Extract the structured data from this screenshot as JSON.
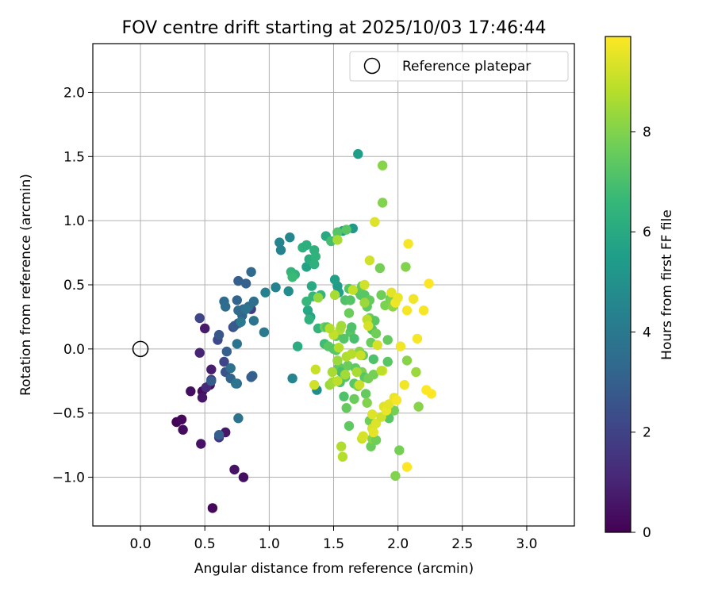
{
  "chart_data": {
    "type": "scatter",
    "title": "FOV centre drift starting at 2025/10/03 17:46:44",
    "xlabel": "Angular distance from reference (arcmin)",
    "ylabel": "Rotation from reference (arcmin)",
    "xlim": [
      -0.37,
      3.37
    ],
    "ylim": [
      -1.38,
      2.38
    ],
    "xticks": [
      0.0,
      0.5,
      1.0,
      1.5,
      2.0,
      2.5,
      3.0
    ],
    "xtick_labels": [
      "0.0",
      "0.5",
      "1.0",
      "1.5",
      "2.0",
      "2.5",
      "3.0"
    ],
    "yticks": [
      -1.0,
      -0.5,
      0.0,
      0.5,
      1.0,
      1.5,
      2.0
    ],
    "ytick_labels": [
      "−1.0",
      "−0.5",
      "0.0",
      "0.5",
      "1.0",
      "1.5",
      "2.0"
    ],
    "grid": true,
    "legend": {
      "position": "top-right",
      "entries": [
        "Reference platepar"
      ]
    },
    "reference_point": {
      "x": 0.0,
      "y": 0.0
    },
    "colorbar": {
      "label": "Hours from first FF file",
      "range": [
        0,
        9.9
      ],
      "ticks": [
        0,
        2,
        4,
        6,
        8
      ],
      "tick_labels": [
        "0",
        "2",
        "4",
        "6",
        "8"
      ],
      "colormap": [
        "#440154",
        "#482878",
        "#3e4989",
        "#31688e",
        "#26828e",
        "#1f9e89",
        "#35b779",
        "#6ece58",
        "#b5de2b",
        "#fde725"
      ]
    },
    "points": [
      [
        0.28,
        -0.57,
        0.1
      ],
      [
        0.32,
        -0.55,
        0.2
      ],
      [
        0.33,
        -0.63,
        0.3
      ],
      [
        0.39,
        -0.33,
        0.4
      ],
      [
        0.47,
        -0.74,
        0.5
      ],
      [
        0.48,
        -0.33,
        0.3
      ],
      [
        0.48,
        -0.38,
        0.6
      ],
      [
        0.5,
        0.16,
        0.7
      ],
      [
        0.54,
        -0.28,
        0.5
      ],
      [
        0.55,
        -0.16,
        0.8
      ],
      [
        0.56,
        -1.24,
        0.2
      ],
      [
        0.66,
        -0.65,
        0.6
      ],
      [
        0.73,
        -0.94,
        0.5
      ],
      [
        0.8,
        -1.0,
        0.4
      ],
      [
        0.46,
        -0.03,
        1.0
      ],
      [
        0.51,
        -0.3,
        1.2
      ],
      [
        0.55,
        -0.24,
        1.5
      ],
      [
        0.61,
        -0.69,
        1.6
      ],
      [
        0.46,
        0.24,
        2.1
      ],
      [
        0.6,
        0.07,
        2.2
      ],
      [
        0.65,
        -0.1,
        2.1
      ],
      [
        0.72,
        0.17,
        2.2
      ],
      [
        0.86,
        0.31,
        1.8
      ],
      [
        0.66,
        -0.18,
        2.6
      ],
      [
        0.61,
        -0.67,
        3.0
      ],
      [
        0.55,
        -0.25,
        2.9
      ],
      [
        0.61,
        0.11,
        2.7
      ],
      [
        0.67,
        -0.02,
        3.0
      ],
      [
        0.7,
        -0.23,
        3.2
      ],
      [
        0.75,
        -0.27,
        3.2
      ],
      [
        0.73,
        0.18,
        2.9
      ],
      [
        0.79,
        0.26,
        3.2
      ],
      [
        0.76,
        0.2,
        2.8
      ],
      [
        0.75,
        0.38,
        3.2
      ],
      [
        0.76,
        0.53,
        3.0
      ],
      [
        0.82,
        0.51,
        3.1
      ],
      [
        0.86,
        0.6,
        3.4
      ],
      [
        0.65,
        0.37,
        3.4
      ],
      [
        0.66,
        0.33,
        3.5
      ],
      [
        0.76,
        0.3,
        3.4
      ],
      [
        0.8,
        0.31,
        3.3
      ],
      [
        0.84,
        0.33,
        3.6
      ],
      [
        0.87,
        -0.21,
        3.3
      ],
      [
        0.86,
        -0.22,
        3.0
      ],
      [
        0.88,
        0.22,
        3.8
      ],
      [
        0.88,
        0.37,
        3.6
      ],
      [
        0.7,
        -0.15,
        3.7
      ],
      [
        0.74,
        -0.27,
        3.9
      ],
      [
        0.75,
        0.04,
        3.8
      ],
      [
        0.76,
        -0.54,
        3.8
      ],
      [
        0.78,
        0.21,
        4.0
      ],
      [
        0.82,
        0.31,
        3.8
      ],
      [
        0.96,
        0.13,
        4.0
      ],
      [
        0.97,
        0.44,
        4.3
      ],
      [
        1.05,
        0.48,
        4.4
      ],
      [
        1.08,
        0.83,
        4.5
      ],
      [
        1.09,
        0.77,
        4.4
      ],
      [
        1.16,
        0.87,
        4.6
      ],
      [
        1.15,
        0.45,
        4.8
      ],
      [
        1.18,
        -0.23,
        4.5
      ],
      [
        1.37,
        -0.32,
        4.8
      ],
      [
        1.65,
        0.94,
        5.3
      ],
      [
        1.69,
        1.52,
        5.5
      ],
      [
        1.57,
        0.92,
        5.6
      ],
      [
        1.54,
        0.44,
        5.6
      ],
      [
        1.53,
        0.49,
        5.4
      ],
      [
        1.51,
        0.54,
        5.6
      ],
      [
        1.29,
        0.64,
        5.7
      ],
      [
        1.3,
        0.3,
        5.9
      ],
      [
        1.32,
        0.25,
        5.8
      ],
      [
        1.33,
        0.49,
        6.0
      ],
      [
        1.44,
        0.88,
        6.0
      ],
      [
        1.22,
        0.02,
        6.1
      ],
      [
        1.26,
        0.79,
        6.3
      ],
      [
        1.29,
        0.81,
        6.2
      ],
      [
        1.31,
        0.7,
        6.1
      ],
      [
        1.35,
        0.77,
        6.3
      ],
      [
        1.2,
        0.58,
        6.4
      ],
      [
        1.17,
        0.6,
        6.5
      ],
      [
        1.18,
        0.56,
        6.7
      ],
      [
        1.35,
        0.66,
        6.3
      ],
      [
        1.36,
        0.72,
        6.4
      ],
      [
        1.29,
        0.37,
        6.6
      ],
      [
        1.31,
        0.23,
        6.4
      ],
      [
        1.34,
        0.41,
        6.6
      ],
      [
        1.38,
        0.16,
        6.5
      ],
      [
        1.4,
        0.42,
        6.5
      ],
      [
        1.43,
        0.04,
        6.8
      ],
      [
        1.48,
        0.84,
        6.9
      ],
      [
        1.53,
        0.91,
        7.2
      ],
      [
        1.59,
        0.38,
        7.1
      ],
      [
        1.6,
        0.93,
        7.3
      ],
      [
        1.62,
        0.47,
        7.2
      ],
      [
        1.63,
        0.38,
        7.2
      ],
      [
        1.63,
        0.13,
        7.3
      ],
      [
        1.64,
        0.17,
        7.1
      ],
      [
        1.66,
        0.08,
        7.0
      ],
      [
        1.69,
        0.45,
        7.4
      ],
      [
        1.71,
        0.42,
        7.3
      ],
      [
        1.72,
        0.49,
        7.5
      ],
      [
        1.74,
        0.42,
        7.3
      ],
      [
        1.76,
        0.33,
        7.4
      ],
      [
        1.78,
        0.38,
        7.5
      ],
      [
        1.78,
        0.24,
        7.6
      ],
      [
        1.79,
        0.05,
        7.6
      ],
      [
        1.8,
        0.15,
        7.2
      ],
      [
        1.81,
        -0.08,
        7.1
      ],
      [
        1.82,
        0.22,
        7.3
      ],
      [
        1.83,
        0.12,
        7.7
      ],
      [
        1.87,
        0.42,
        7.7
      ],
      [
        1.86,
        0.63,
        7.8
      ],
      [
        1.88,
        1.43,
        8.1
      ],
      [
        1.88,
        1.14,
        8.0
      ],
      [
        1.9,
        0.34,
        7.9
      ],
      [
        1.92,
        0.07,
        7.5
      ],
      [
        1.94,
        0.39,
        7.7
      ],
      [
        1.95,
        0.38,
        7.9
      ],
      [
        1.96,
        0.33,
        8.2
      ],
      [
        1.92,
        -0.1,
        7.3
      ],
      [
        1.93,
        -0.54,
        7.3
      ],
      [
        1.97,
        -0.48,
        7.8
      ],
      [
        1.98,
        -0.99,
        8.0
      ],
      [
        2.01,
        -0.79,
        7.8
      ],
      [
        2.06,
        0.64,
        8.0
      ],
      [
        2.07,
        -0.09,
        8.1
      ],
      [
        2.14,
        -0.18,
        8.4
      ],
      [
        2.16,
        -0.45,
        8.1
      ],
      [
        1.43,
        0.17,
        7.7
      ],
      [
        1.45,
        0.17,
        7.2
      ],
      [
        1.46,
        0.02,
        7.3
      ],
      [
        1.5,
        0.0,
        7.2
      ],
      [
        1.52,
        0.1,
        7.4
      ],
      [
        1.52,
        -0.01,
        7.3
      ],
      [
        1.54,
        -0.14,
        7.4
      ],
      [
        1.55,
        -0.26,
        7.1
      ],
      [
        1.56,
        -0.18,
        7.0
      ],
      [
        1.58,
        -0.37,
        7.1
      ],
      [
        1.58,
        0.08,
        7.2
      ],
      [
        1.59,
        -0.22,
        7.2
      ],
      [
        1.6,
        -0.46,
        7.5
      ],
      [
        1.61,
        -0.13,
        7.6
      ],
      [
        1.62,
        -0.6,
        7.4
      ],
      [
        1.62,
        0.28,
        7.6
      ],
      [
        1.66,
        -0.27,
        7.3
      ],
      [
        1.66,
        -0.39,
        7.6
      ],
      [
        1.67,
        -0.15,
        7.4
      ],
      [
        1.69,
        -0.29,
        7.8
      ],
      [
        1.7,
        -0.02,
        8.1
      ],
      [
        1.72,
        -0.18,
        7.9
      ],
      [
        1.73,
        -0.05,
        7.5
      ],
      [
        1.74,
        -0.22,
        7.3
      ],
      [
        1.75,
        -0.35,
        7.5
      ],
      [
        1.76,
        -0.42,
        8.0
      ],
      [
        1.77,
        -0.23,
        7.8
      ],
      [
        1.78,
        -0.56,
        7.7
      ],
      [
        1.79,
        -0.76,
        7.6
      ],
      [
        1.8,
        -0.7,
        8.1
      ],
      [
        1.81,
        -0.2,
        7.8
      ],
      [
        1.83,
        -0.71,
        7.7
      ],
      [
        1.74,
        0.36,
        8.4
      ],
      [
        1.38,
        0.4,
        8.3
      ],
      [
        1.47,
        -0.28,
        8.4
      ],
      [
        1.49,
        -0.18,
        8.6
      ],
      [
        1.49,
        -0.26,
        8.5
      ],
      [
        1.51,
        0.42,
        8.6
      ],
      [
        1.53,
        0.85,
        8.6
      ],
      [
        1.53,
        -0.09,
        8.4
      ],
      [
        1.53,
        -0.25,
        8.9
      ],
      [
        1.54,
        0.01,
        8.8
      ],
      [
        1.55,
        0.15,
        8.7
      ],
      [
        1.56,
        0.18,
        8.5
      ],
      [
        1.56,
        -0.76,
        8.7
      ],
      [
        1.57,
        -0.84,
        8.8
      ],
      [
        1.59,
        -0.2,
        8.5
      ],
      [
        1.6,
        -0.06,
        8.7
      ],
      [
        1.64,
        -0.04,
        8.8
      ],
      [
        1.65,
        0.46,
        9.0
      ],
      [
        1.68,
        -0.18,
        8.6
      ],
      [
        1.7,
        -0.28,
        9.1
      ],
      [
        1.71,
        -0.05,
        9.1
      ],
      [
        1.72,
        -0.7,
        9.1
      ],
      [
        1.73,
        -0.68,
        9.3
      ],
      [
        1.74,
        0.5,
        9.2
      ],
      [
        1.76,
        0.23,
        8.9
      ],
      [
        1.77,
        0.18,
        9.3
      ],
      [
        1.78,
        0.69,
        9.2
      ],
      [
        1.8,
        -0.51,
        9.4
      ],
      [
        1.8,
        -0.62,
        9.3
      ],
      [
        1.81,
        -0.65,
        9.5
      ],
      [
        1.82,
        0.99,
        9.4
      ],
      [
        1.83,
        -0.58,
        9.4
      ],
      [
        1.84,
        0.03,
        9.3
      ],
      [
        1.87,
        -0.53,
        9.2
      ],
      [
        1.88,
        -0.17,
        9.5
      ],
      [
        1.89,
        -0.45,
        9.4
      ],
      [
        1.91,
        -0.48,
        9.6
      ],
      [
        1.93,
        -0.43,
        9.5
      ],
      [
        1.95,
        0.44,
        9.5
      ],
      [
        1.97,
        -0.38,
        9.6
      ],
      [
        1.98,
        0.36,
        9.7
      ],
      [
        1.99,
        -0.4,
        9.8
      ],
      [
        2.0,
        0.4,
        9.6
      ],
      [
        2.02,
        0.02,
        9.7
      ],
      [
        2.05,
        -0.28,
        9.7
      ],
      [
        2.07,
        0.3,
        9.8
      ],
      [
        2.07,
        -0.92,
        9.9
      ],
      [
        2.08,
        0.82,
        9.8
      ],
      [
        2.12,
        0.39,
        9.7
      ],
      [
        2.15,
        0.08,
        9.8
      ],
      [
        2.2,
        0.3,
        9.8
      ],
      [
        2.22,
        -0.32,
        9.9
      ],
      [
        2.24,
        0.51,
        9.9
      ],
      [
        2.26,
        -0.35,
        9.9
      ],
      [
        1.36,
        -0.16,
        9.1
      ],
      [
        1.35,
        -0.28,
        9.2
      ],
      [
        1.5,
        0.11,
        9.0
      ],
      [
        1.47,
        0.16,
        8.8
      ],
      [
        1.87,
        -0.17,
        8.9
      ]
    ]
  }
}
